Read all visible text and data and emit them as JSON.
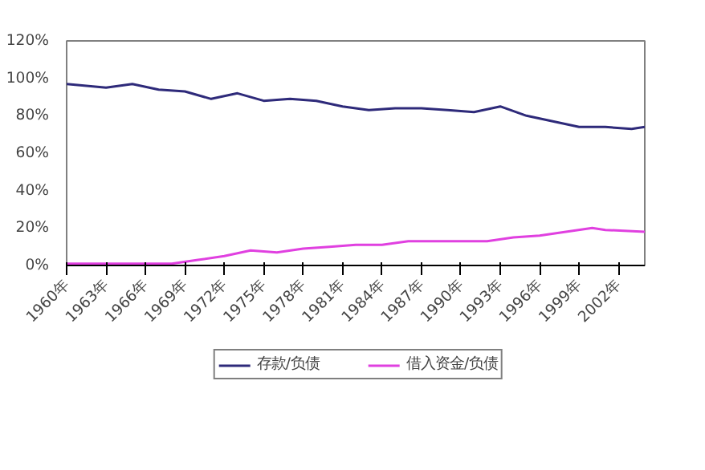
{
  "chart_data": {
    "type": "line",
    "xlim": [
      1960,
      2004
    ],
    "xticks": [
      {
        "value": 1960,
        "label": "1960年"
      },
      {
        "value": 1963,
        "label": "1963年"
      },
      {
        "value": 1966,
        "label": "1966年"
      },
      {
        "value": 1969,
        "label": "1969年"
      },
      {
        "value": 1972,
        "label": "1972年"
      },
      {
        "value": 1975,
        "label": "1975年"
      },
      {
        "value": 1978,
        "label": "1978年"
      },
      {
        "value": 1981,
        "label": "1981年"
      },
      {
        "value": 1984,
        "label": "1984年"
      },
      {
        "value": 1987,
        "label": "1987年"
      },
      {
        "value": 1990,
        "label": "1990年"
      },
      {
        "value": 1993,
        "label": "1993年"
      },
      {
        "value": 1996,
        "label": "1996年"
      },
      {
        "value": 1999,
        "label": "1999年"
      },
      {
        "value": 2002,
        "label": "2002年"
      }
    ],
    "ylim": [
      0,
      120
    ],
    "yticks": [
      {
        "value": 0,
        "label": "0%"
      },
      {
        "value": 20,
        "label": "20%"
      },
      {
        "value": 40,
        "label": "40%"
      },
      {
        "value": 60,
        "label": "60%"
      },
      {
        "value": 80,
        "label": "80%"
      },
      {
        "value": 100,
        "label": "100%"
      },
      {
        "value": 120,
        "label": "120%"
      }
    ],
    "grid": false,
    "legend": "bottom",
    "marker": "none",
    "line_style": "solid",
    "series": [
      {
        "name": "存款/负债",
        "color": "#2e2a7a",
        "x": [
          1960,
          1963,
          1965,
          1967,
          1969,
          1971,
          1973,
          1975,
          1977,
          1979,
          1981,
          1983,
          1985,
          1987,
          1989,
          1991,
          1993,
          1995,
          1997,
          1999,
          2001,
          2003,
          2004
        ],
        "values": [
          97,
          95,
          97,
          94,
          93,
          89,
          92,
          88,
          89,
          88,
          85,
          83,
          84,
          84,
          83,
          82,
          85,
          80,
          77,
          74,
          74,
          73,
          74
        ]
      },
      {
        "name": "借入资金/负债",
        "color": "#e040e0",
        "x": [
          1960,
          1968,
          1970,
          1972,
          1974,
          1976,
          1978,
          1980,
          1982,
          1984,
          1986,
          1988,
          1990,
          1992,
          1994,
          1996,
          1998,
          2000,
          2001,
          2004
        ],
        "values": [
          1,
          1,
          3,
          5,
          8,
          7,
          9,
          10,
          11,
          11,
          13,
          13,
          13,
          13,
          15,
          16,
          18,
          20,
          19,
          18
        ]
      }
    ]
  }
}
